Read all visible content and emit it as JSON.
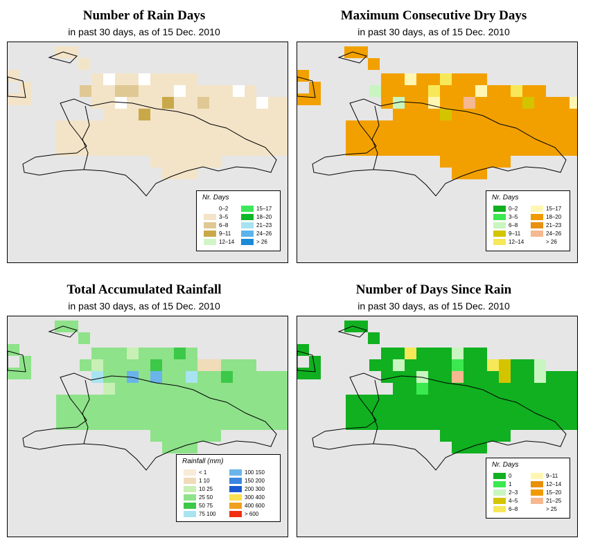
{
  "panels": [
    {
      "id": "rain_days",
      "title": "Number of Rain Days",
      "subtitle": "in past 30 days, as of  15 Dec. 2010",
      "legend_title": "Nr. Days",
      "legend": [
        {
          "label": "0–2",
          "color": "#ffffff"
        },
        {
          "label": "3–5",
          "color": "#f3e4c8"
        },
        {
          "label": "6–8",
          "color": "#e0c894"
        },
        {
          "label": "9–11",
          "color": "#c9a84a"
        },
        {
          "label": "12–14",
          "color": "#d2f5c8"
        },
        {
          "label": "15–17",
          "color": "#3ce85a"
        },
        {
          "label": "18–20",
          "color": "#10b828"
        },
        {
          "label": "21–23",
          "color": "#a8e2f0"
        },
        {
          "label": "24–26",
          "color": "#5ab4ea"
        },
        {
          "label": "> 26",
          "color": "#1a8ad6"
        }
      ],
      "base": "#f3e4c8",
      "cells": [
        {
          "i": 1,
          "color": "#ffffff"
        },
        {
          "i": 4,
          "color": "#ffffff"
        },
        {
          "i": 9,
          "color": "#e0c894"
        },
        {
          "i": 12,
          "color": "#e0c894"
        },
        {
          "i": 13,
          "color": "#e0c894"
        },
        {
          "i": 17,
          "color": "#ffffff"
        },
        {
          "i": 22,
          "color": "#ffffff"
        },
        {
          "i": 26,
          "color": "#ffffff"
        },
        {
          "i": 30,
          "color": "#c9a84a"
        },
        {
          "i": 33,
          "color": "#e0c894"
        },
        {
          "i": 38,
          "color": "#ffffff"
        },
        {
          "i": 44,
          "color": "#c9a84a"
        }
      ]
    },
    {
      "id": "max_dry",
      "title": "Maximum Consecutive Dry Days",
      "subtitle": "in past 30 days, as of  15 Dec. 2010",
      "legend_title": "Nr. Days",
      "legend": [
        {
          "label": "0–2",
          "color": "#10b020"
        },
        {
          "label": "3–5",
          "color": "#3ce850"
        },
        {
          "label": "6–8",
          "color": "#c8f5c0"
        },
        {
          "label": "9–11",
          "color": "#d4c400"
        },
        {
          "label": "12–14",
          "color": "#f7e85a"
        },
        {
          "label": "15–17",
          "color": "#fff6b4"
        },
        {
          "label": "18–20",
          "color": "#f09a00"
        },
        {
          "label": "21–23",
          "color": "#e89010"
        },
        {
          "label": "24–26",
          "color": "#f5b890"
        },
        {
          "label": "> 26",
          "color": "#ffffff"
        }
      ],
      "base": "#f2a000",
      "cells": [
        {
          "i": 2,
          "color": "#fff6b4"
        },
        {
          "i": 5,
          "color": "#f7e85a"
        },
        {
          "i": 9,
          "color": "#c8f5c0"
        },
        {
          "i": 14,
          "color": "#f7e85a"
        },
        {
          "i": 18,
          "color": "#fff6b4"
        },
        {
          "i": 21,
          "color": "#f7e85a"
        },
        {
          "i": 25,
          "color": "#c8f5c0"
        },
        {
          "i": 28,
          "color": "#fff6b4"
        },
        {
          "i": 31,
          "color": "#f5b890"
        },
        {
          "i": 36,
          "color": "#d4c400"
        },
        {
          "i": 40,
          "color": "#fff6b4"
        },
        {
          "i": 45,
          "color": "#d4c400"
        }
      ]
    },
    {
      "id": "rainfall",
      "title": "Total Accumulated Rainfall",
      "subtitle": "in past 30 days, as of  15 Dec. 2010",
      "legend_title": "Rainfall (mm)",
      "legend": [
        {
          "label": "< 1",
          "color": "#f8ecd8"
        },
        {
          "label": "1   10",
          "color": "#f0dcb8"
        },
        {
          "label": "10   25",
          "color": "#c8f0b4"
        },
        {
          "label": "25   50",
          "color": "#8ee28a"
        },
        {
          "label": "50   75",
          "color": "#3cc848"
        },
        {
          "label": "75   100",
          "color": "#a8e4f0"
        },
        {
          "label": "100   150",
          "color": "#6ab4ea"
        },
        {
          "label": "150   200",
          "color": "#3a86e0"
        },
        {
          "label": "200   300",
          "color": "#1a5ad0"
        },
        {
          "label": "300   400",
          "color": "#f8e050"
        },
        {
          "label": "400   600",
          "color": "#f0a020"
        },
        {
          "label": "> 600",
          "color": "#f03010"
        }
      ],
      "base": "#8ee28a",
      "cells": [
        {
          "i": 3,
          "color": "#c8f0b4"
        },
        {
          "i": 7,
          "color": "#3cc848"
        },
        {
          "i": 10,
          "color": "#c8f0b4"
        },
        {
          "i": 15,
          "color": "#3cc848"
        },
        {
          "i": 19,
          "color": "#f0dcb8"
        },
        {
          "i": 20,
          "color": "#f0dcb8"
        },
        {
          "i": 24,
          "color": "#a8e4f0"
        },
        {
          "i": 27,
          "color": "#6ab4ea"
        },
        {
          "i": 29,
          "color": "#6ab4ea"
        },
        {
          "i": 32,
          "color": "#a8e4f0"
        },
        {
          "i": 35,
          "color": "#3cc848"
        },
        {
          "i": 41,
          "color": "#c8f0b4"
        }
      ]
    },
    {
      "id": "since_rain",
      "title": "Number of Days Since Rain",
      "subtitle": "in past 30 days, as of  15 Dec. 2010",
      "legend_title": "Nr. Days",
      "legend": [
        {
          "label": "0",
          "color": "#10b020"
        },
        {
          "label": "1",
          "color": "#3ce850"
        },
        {
          "label": "2–3",
          "color": "#c8f5c0"
        },
        {
          "label": "4–5",
          "color": "#d4c400"
        },
        {
          "label": "6–8",
          "color": "#f7e85a"
        },
        {
          "label": "9–11",
          "color": "#fff6b4"
        },
        {
          "label": "12–14",
          "color": "#e89000"
        },
        {
          "label": "15–20",
          "color": "#f09a00"
        },
        {
          "label": "21–25",
          "color": "#f5b890"
        },
        {
          "label": "> 25",
          "color": "#ffffff"
        }
      ],
      "base": "#10b020",
      "cells": [
        {
          "i": 2,
          "color": "#f7e85a"
        },
        {
          "i": 6,
          "color": "#c8f5c0"
        },
        {
          "i": 11,
          "color": "#c8f5c0"
        },
        {
          "i": 16,
          "color": "#3ce850"
        },
        {
          "i": 19,
          "color": "#f7e85a"
        },
        {
          "i": 20,
          "color": "#d4c400"
        },
        {
          "i": 23,
          "color": "#c8f5c0"
        },
        {
          "i": 27,
          "color": "#c8f5c0"
        },
        {
          "i": 30,
          "color": "#f5b890"
        },
        {
          "i": 34,
          "color": "#d4c400"
        },
        {
          "i": 37,
          "color": "#c8f5c0"
        },
        {
          "i": 43,
          "color": "#3ce850"
        }
      ]
    }
  ]
}
